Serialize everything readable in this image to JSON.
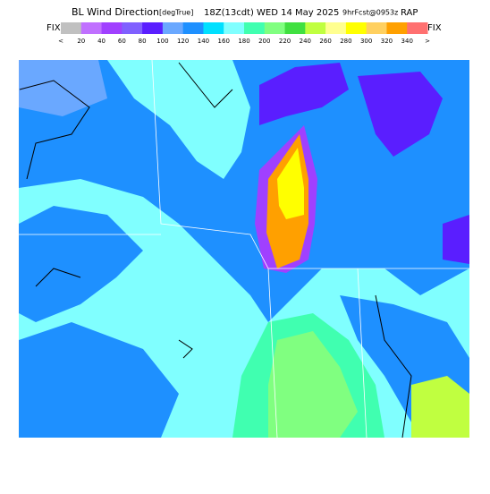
{
  "header": {
    "title": "BL Wind Direction",
    "units": "[degTrue]",
    "valid": "18Z(13cdt) WED 14 May 2025",
    "forecast": "9hrFcst@0953z",
    "model": "RAP"
  },
  "colorbar": {
    "left_label": "FIX",
    "right_label": "FIX",
    "labels": [
      "<",
      "20",
      "40",
      "60",
      "80",
      "100",
      "120",
      "140",
      "160",
      "180",
      "200",
      "220",
      "240",
      "260",
      "280",
      "300",
      "320",
      "340",
      ">"
    ],
    "colors": [
      "#c0c0c0",
      "#c070ff",
      "#a040ff",
      "#8060ff",
      "#5a1eff",
      "#6aa8ff",
      "#1e90ff",
      "#00e0ff",
      "#80ffff",
      "#40ffb0",
      "#80ff80",
      "#40e040",
      "#c0ff40",
      "#ffff90",
      "#ffff00",
      "#ffd060",
      "#ffa000",
      "#ff7070"
    ]
  }
}
